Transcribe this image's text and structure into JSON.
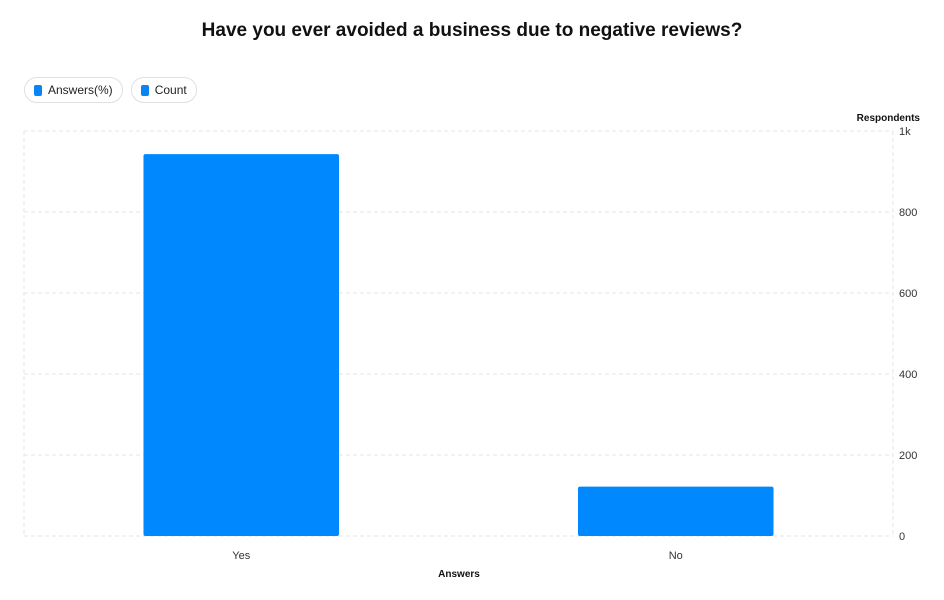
{
  "chart_data": {
    "type": "bar",
    "title": "Have you ever avoided a business due to negative reviews?",
    "categories": [
      "Yes",
      "No"
    ],
    "series": [
      {
        "name": "Count",
        "values": [
          943,
          122
        ]
      }
    ],
    "xlabel": "Answers",
    "ylabel": "Respondents",
    "ylim": [
      0,
      1000
    ],
    "yticks": [
      0,
      200,
      400,
      600,
      800,
      1000
    ],
    "ytick_labels": [
      "0",
      "200",
      "400",
      "600",
      "800",
      "1k"
    ],
    "y_axis_side": "right",
    "grid": true,
    "legend": {
      "position": "top-left",
      "items": [
        {
          "label": "Answers(%)",
          "color": "#0a84f5"
        },
        {
          "label": "Count",
          "color": "#0a84f5"
        }
      ]
    },
    "bar_color": "#0088ff"
  }
}
